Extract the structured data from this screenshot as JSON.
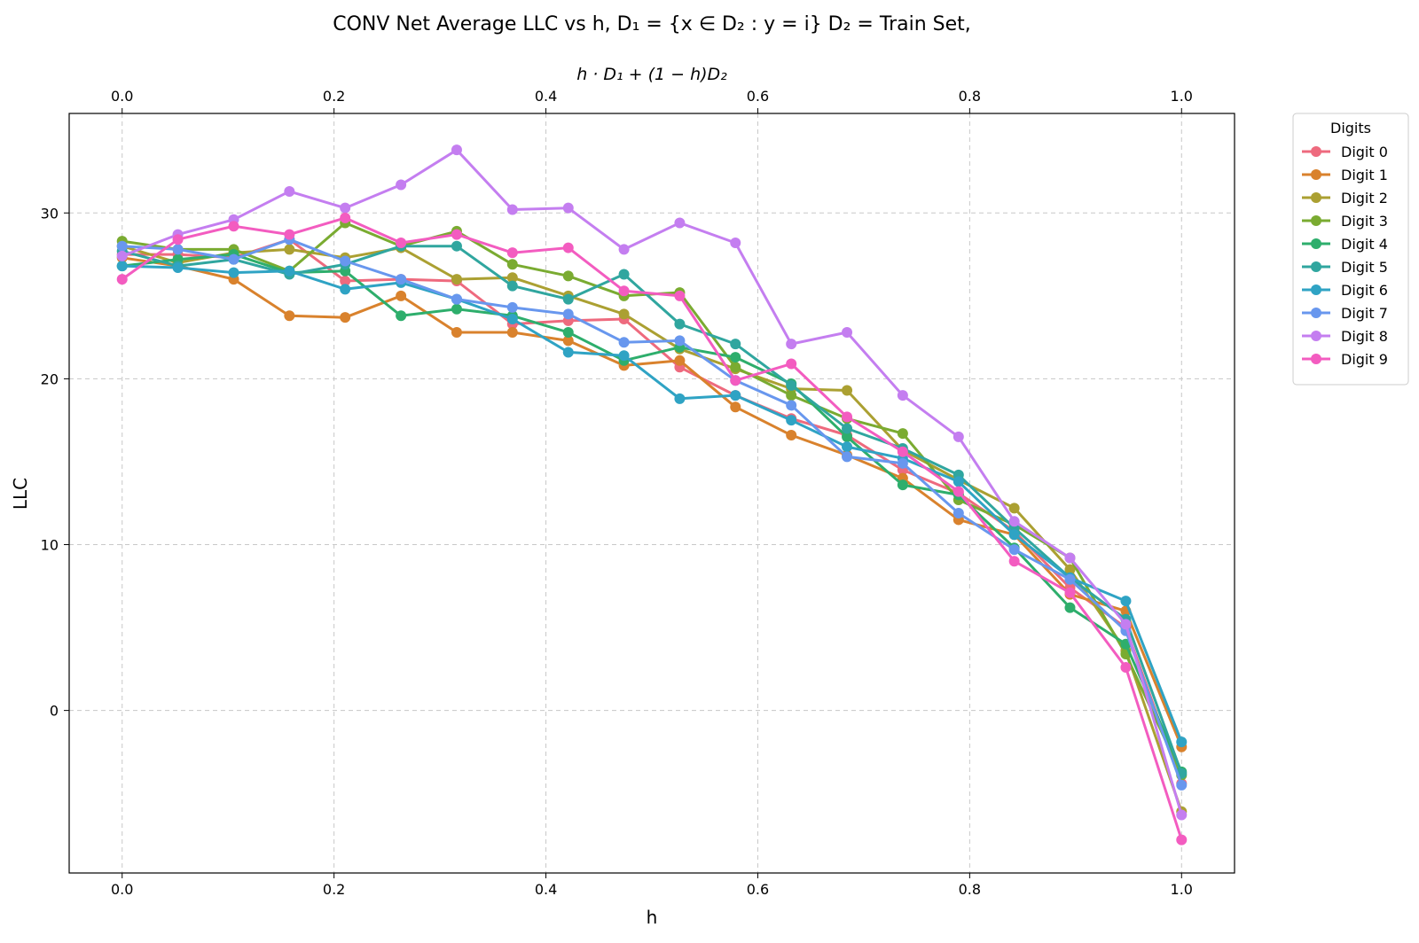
{
  "chart_data": {
    "type": "line",
    "title": "CONV Net Average LLC vs h, D₁ = {x ∈ D₂ : y = i} D₂ = Train Set,",
    "top_axis_label": "h · D₁ + (1 − h)D₂",
    "xlabel": "h",
    "ylabel": "LLC",
    "xlim": [
      -0.05,
      1.05
    ],
    "ylim": [
      -9.8,
      36.0
    ],
    "xticks": [
      "0.0",
      "0.2",
      "0.4",
      "0.6",
      "0.8",
      "1.0"
    ],
    "yticks": [
      "0",
      "10",
      "20",
      "30"
    ],
    "grid": true,
    "legend": {
      "title": "Digits",
      "placement": "outside-top-right"
    },
    "x": [
      0.0,
      0.0526,
      0.1053,
      0.1579,
      0.2105,
      0.2632,
      0.3158,
      0.3684,
      0.4211,
      0.4737,
      0.5263,
      0.5789,
      0.6316,
      0.6842,
      0.7368,
      0.7895,
      0.8421,
      0.8947,
      0.9474,
      1.0
    ],
    "series": [
      {
        "name": "Digit 0",
        "color": "#ee6a7e",
        "values": [
          27.5,
          27.5,
          27.3,
          28.4,
          25.9,
          26.0,
          25.9,
          23.3,
          23.5,
          23.6,
          20.7,
          19.0,
          17.6,
          16.6,
          14.5,
          13.1,
          10.8,
          7.4,
          5.0,
          -4.4
        ]
      },
      {
        "name": "Digit 1",
        "color": "#d9822d",
        "values": [
          27.3,
          26.8,
          26.0,
          23.8,
          23.7,
          25.0,
          22.8,
          22.8,
          22.3,
          20.8,
          21.1,
          18.3,
          16.6,
          15.4,
          14.0,
          11.5,
          10.6,
          7.0,
          6.0,
          -2.2
        ]
      },
      {
        "name": "Digit 2",
        "color": "#aba032",
        "values": [
          28.0,
          27.0,
          27.6,
          27.8,
          27.3,
          27.9,
          26.0,
          26.1,
          25.0,
          23.9,
          21.8,
          20.6,
          19.4,
          19.3,
          15.7,
          13.9,
          12.2,
          8.5,
          3.6,
          -6.1
        ]
      },
      {
        "name": "Digit 3",
        "color": "#7aab31",
        "values": [
          28.3,
          27.8,
          27.8,
          26.5,
          29.4,
          28.0,
          28.9,
          26.9,
          26.2,
          25.0,
          25.2,
          20.7,
          19.0,
          17.6,
          16.7,
          12.7,
          11.2,
          9.2,
          3.4,
          -3.9
        ]
      },
      {
        "name": "Digit 4",
        "color": "#2eae6c",
        "values": [
          26.8,
          27.2,
          27.5,
          26.4,
          26.5,
          23.8,
          24.2,
          23.8,
          22.8,
          21.1,
          21.9,
          21.3,
          19.7,
          16.5,
          13.6,
          13.0,
          9.8,
          6.2,
          4.0,
          -3.7
        ]
      },
      {
        "name": "Digit 5",
        "color": "#30a69f",
        "values": [
          27.7,
          26.8,
          27.2,
          26.3,
          26.9,
          28.0,
          28.0,
          25.6,
          24.8,
          26.3,
          23.3,
          22.1,
          19.6,
          17.0,
          15.8,
          14.2,
          11.0,
          8.0,
          5.5,
          -3.8
        ]
      },
      {
        "name": "Digit 6",
        "color": "#2fa3c4",
        "values": [
          26.8,
          26.7,
          26.4,
          26.5,
          25.4,
          25.8,
          24.8,
          23.6,
          21.6,
          21.4,
          18.8,
          19.0,
          17.5,
          15.9,
          15.2,
          13.8,
          10.6,
          8.0,
          6.6,
          -1.9
        ]
      },
      {
        "name": "Digit 7",
        "color": "#6897ee",
        "values": [
          28.0,
          27.8,
          27.2,
          28.4,
          27.1,
          26.0,
          24.8,
          24.3,
          23.9,
          22.2,
          22.3,
          19.9,
          18.4,
          15.3,
          14.9,
          11.9,
          9.7,
          7.9,
          4.8,
          -4.5
        ]
      },
      {
        "name": "Digit 8",
        "color": "#c47ef0",
        "values": [
          27.4,
          28.7,
          29.6,
          31.3,
          30.3,
          31.7,
          33.8,
          30.2,
          30.3,
          27.8,
          29.4,
          28.2,
          22.1,
          22.8,
          19.0,
          16.5,
          11.4,
          9.2,
          5.2,
          -6.3
        ]
      },
      {
        "name": "Digit 9",
        "color": "#f35cc0",
        "values": [
          26.0,
          28.4,
          29.2,
          28.7,
          29.7,
          28.2,
          28.7,
          27.6,
          27.9,
          25.3,
          25.0,
          19.9,
          20.9,
          17.7,
          15.6,
          13.2,
          9.0,
          7.1,
          2.6,
          -7.8
        ]
      }
    ]
  }
}
